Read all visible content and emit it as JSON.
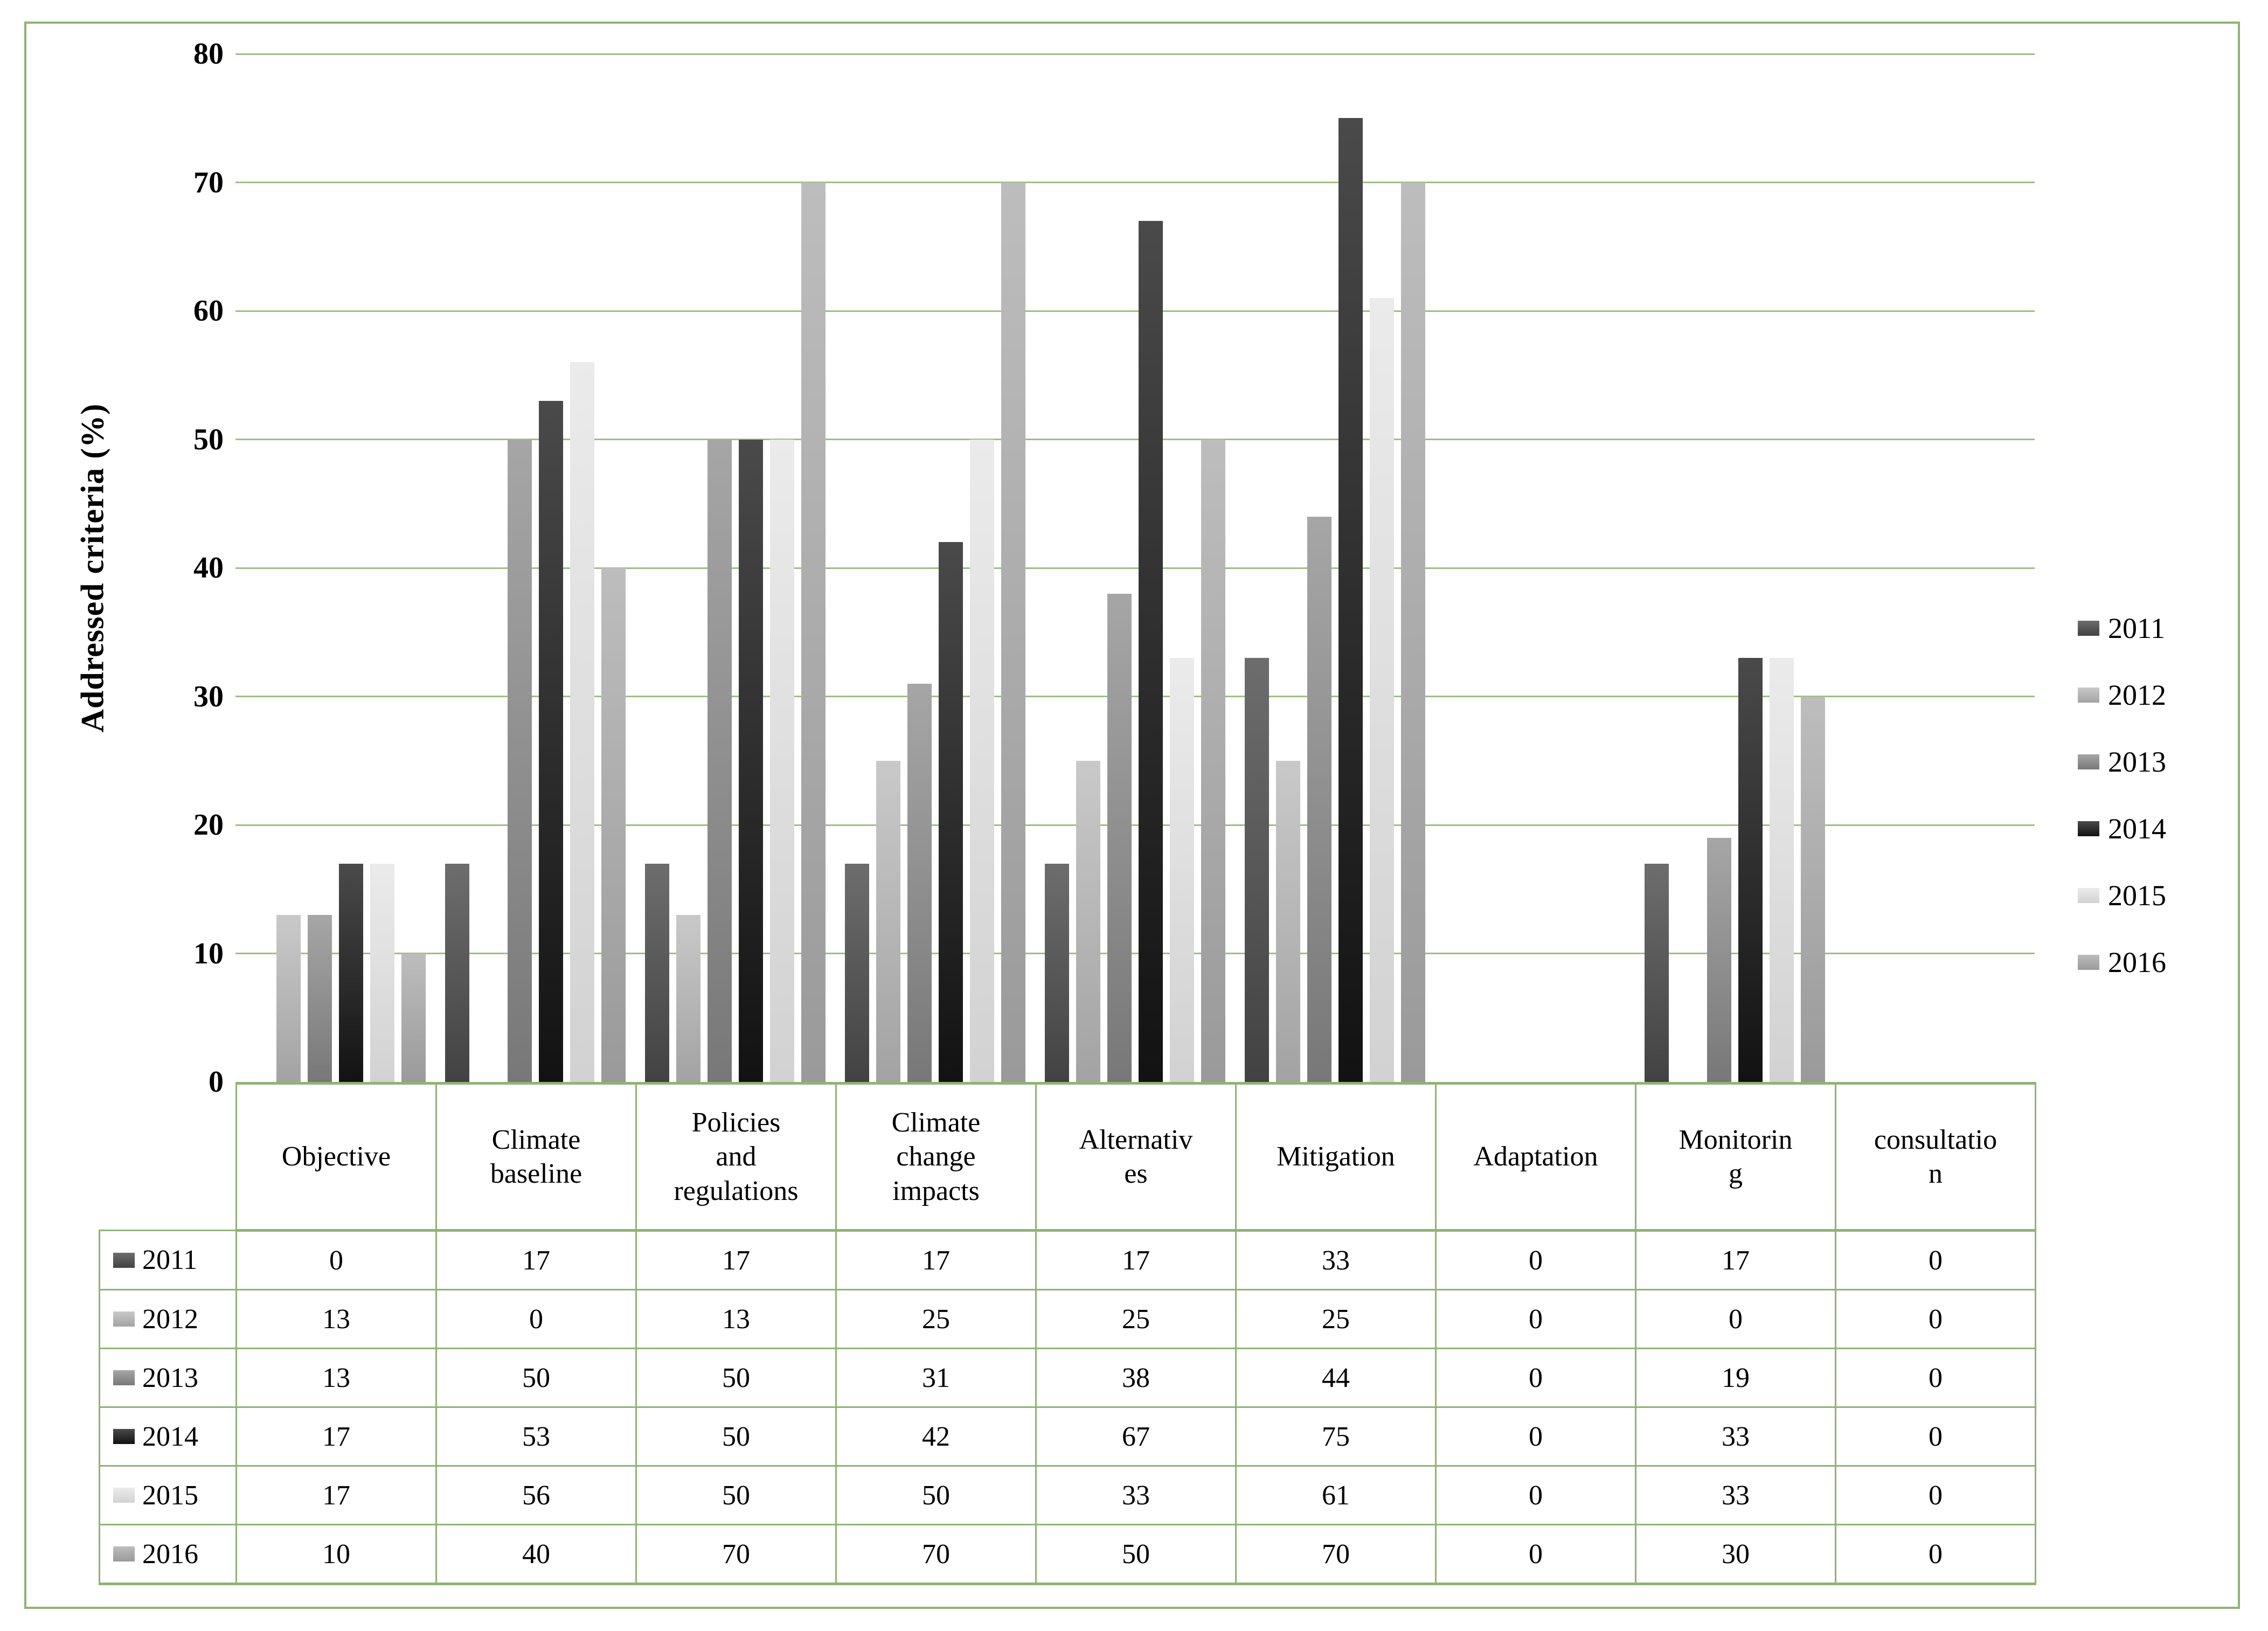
{
  "chart_data": {
    "type": "bar",
    "title": "",
    "ylabel": "Addressed criteria (%)",
    "xlabel": "",
    "ylim": [
      0,
      80
    ],
    "yticks": [
      0,
      10,
      20,
      30,
      40,
      50,
      60,
      70,
      80
    ],
    "grid": true,
    "legend_position": "right",
    "categories": [
      "Objective",
      "Climate baseline",
      "Policies and regulations",
      "Climate change impacts",
      "Alternatives",
      "Mitigation",
      "Adaptation",
      "Monitoring",
      "consultation"
    ],
    "category_display": [
      "Objective",
      "Climate\nbaseline",
      "Policies\nand\nregulations",
      "Climate\nchange\nimpacts",
      "Alternativ\nes",
      "Mitigation",
      "Adaptation",
      "Monitorin\ng",
      "consultatio\nn"
    ],
    "series": [
      {
        "name": "2011",
        "color_top": "#6d6d6d",
        "color_bottom": "#424242",
        "values": [
          0,
          17,
          17,
          17,
          17,
          33,
          0,
          17,
          0
        ]
      },
      {
        "name": "2012",
        "color_top": "#c9c9c9",
        "color_bottom": "#a3a3a3",
        "values": [
          13,
          0,
          13,
          25,
          25,
          25,
          0,
          0,
          0
        ]
      },
      {
        "name": "2013",
        "color_top": "#a6a6a6",
        "color_bottom": "#787878",
        "values": [
          13,
          50,
          50,
          31,
          38,
          44,
          0,
          19,
          0
        ]
      },
      {
        "name": "2014",
        "color_top": "#4a4a4a",
        "color_bottom": "#121212",
        "values": [
          17,
          53,
          50,
          42,
          67,
          75,
          0,
          33,
          0
        ]
      },
      {
        "name": "2015",
        "color_top": "#ebebeb",
        "color_bottom": "#d2d2d2",
        "values": [
          17,
          56,
          50,
          50,
          33,
          61,
          0,
          33,
          0
        ]
      },
      {
        "name": "2016",
        "color_top": "#bdbdbd",
        "color_bottom": "#9a9a9a",
        "values": [
          10,
          40,
          70,
          70,
          50,
          70,
          0,
          30,
          0
        ]
      }
    ]
  },
  "colors": {
    "border_green": "#8fb374",
    "grid_green": "#9dbf85",
    "background": "#ffffff",
    "text": "#000000"
  }
}
